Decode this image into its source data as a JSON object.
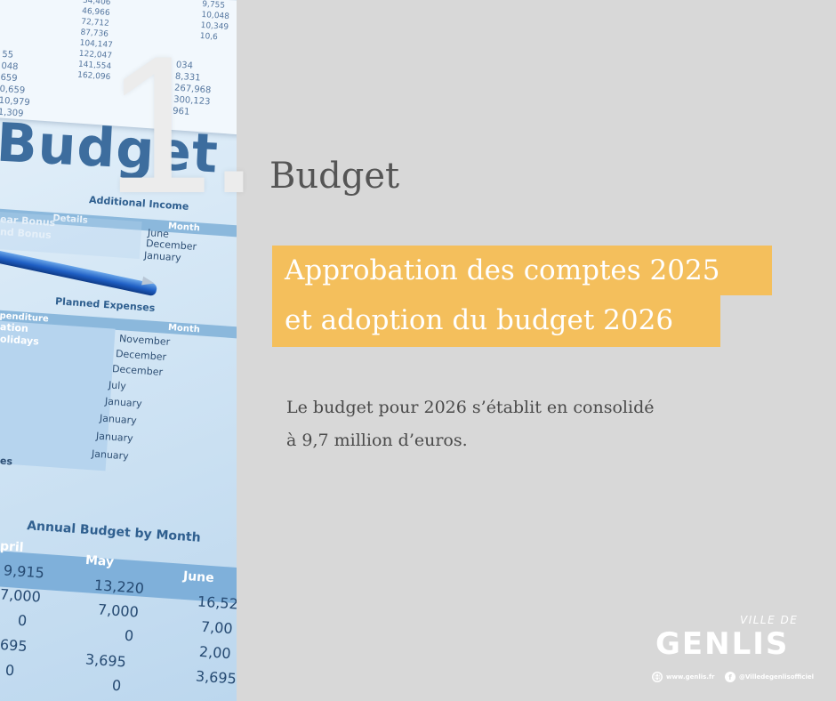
{
  "big_number": "1.",
  "title": "Budget",
  "highlight_lines": [
    "Approbation des comptes 2025",
    "et adoption du budget 2026"
  ],
  "body_lines": [
    "Le budget pour 2026 s’établit en consolidé",
    "à 9,7 million d’euros."
  ],
  "colors": {
    "background": "#d8d8d8",
    "highlight": "#f4bf5c",
    "title_text": "#555555",
    "body_text": "#4a4a4a"
  },
  "photo": {
    "top_numbers_col1": [
      "34,406",
      "46,966",
      "72,712",
      "87,736",
      "104,147",
      "122,047",
      "141,554",
      "162,096"
    ],
    "top_numbers_col2": [
      "9,755",
      "10,048",
      "10,349",
      "10,6"
    ],
    "top_numbers_left": [
      "55",
      "048",
      "659",
      "0,659",
      "10,979",
      "1,309"
    ],
    "top_numbers_right": [
      "034",
      "8,331",
      "267,968",
      "300,123",
      "961"
    ],
    "budget_word": "Budget",
    "additional_income": {
      "title": "Additional Income",
      "headers": [
        "Details",
        "Month"
      ],
      "rows": [
        {
          "detail": "ear Bonus",
          "month": "June"
        },
        {
          "detail": "nd Bonus",
          "month": "December"
        },
        {
          "detail": "",
          "month": "January"
        }
      ]
    },
    "planned_expenses": {
      "title": "Planned Expenses",
      "headers": [
        "penditure",
        "Month"
      ],
      "rows": [
        {
          "detail": "ation",
          "month": "November"
        },
        {
          "detail": "olidays",
          "month": "December"
        },
        {
          "detail": "",
          "month": "December"
        },
        {
          "detail": "",
          "month": "July"
        },
        {
          "detail": "",
          "month": "January"
        },
        {
          "detail": "",
          "month": "January"
        },
        {
          "detail": "",
          "month": "January"
        },
        {
          "detail": "es",
          "month": "January"
        }
      ]
    },
    "annual_budget": {
      "title": "Annual Budget by Month",
      "headers": [
        "pril",
        "May",
        "June"
      ],
      "col1": [
        "9,915",
        "7,000",
        "0",
        "695",
        "0"
      ],
      "col2": [
        "13,220",
        "7,000",
        "0",
        "3,695",
        "0"
      ],
      "col3": [
        "16,52",
        "7,00",
        "2,00",
        "3,695"
      ]
    }
  },
  "logo": {
    "small": "VILLE DE",
    "big": "GENLIS"
  },
  "footer": {
    "website": "www.genlis.fr",
    "website_icon": "globe-icon",
    "facebook": "@Villedegenlisofficiel",
    "facebook_icon": "facebook-icon"
  }
}
